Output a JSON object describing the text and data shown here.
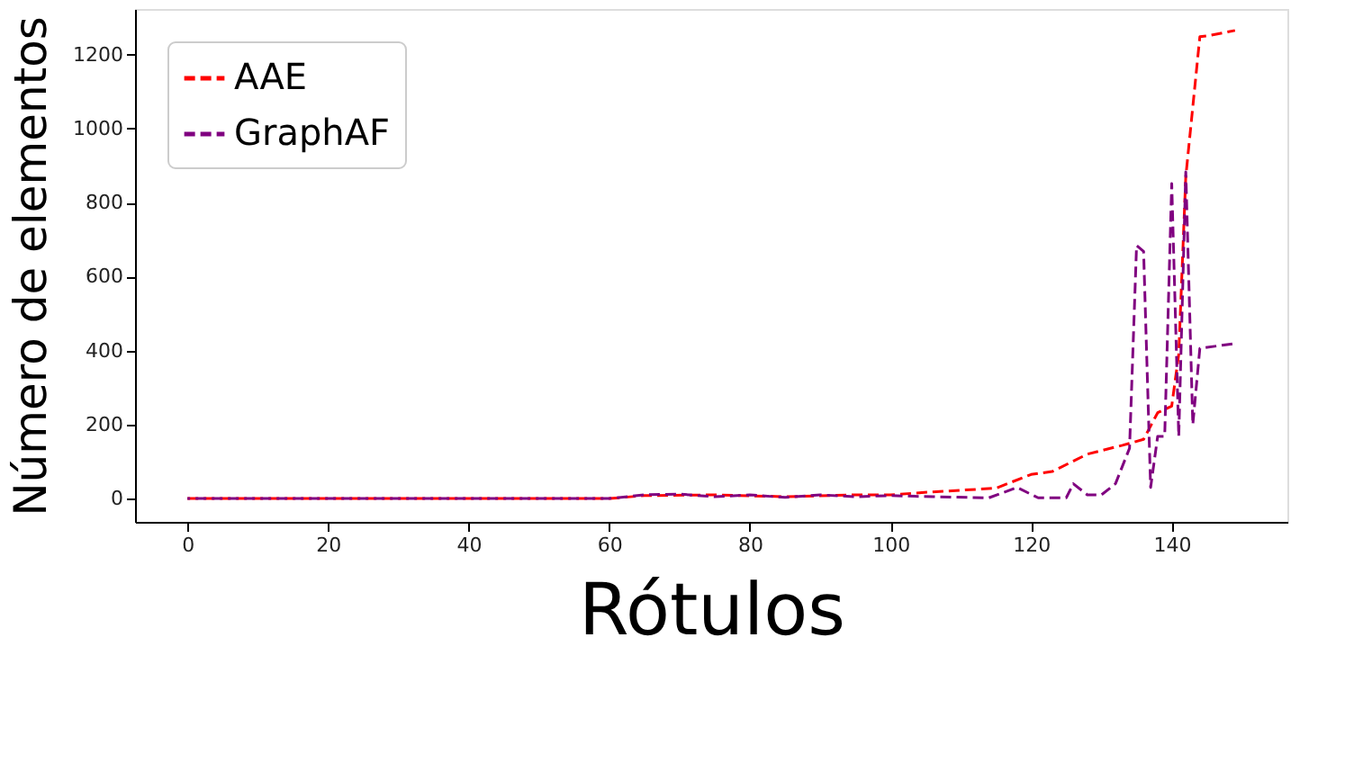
{
  "chart_data": {
    "type": "line",
    "xlabel": "Rótulos",
    "ylabel": "Número de elementos",
    "xlim": [
      -7.45,
      156.45
    ],
    "ylim": [
      -63,
      1323
    ],
    "xticks": [
      0,
      20,
      40,
      60,
      80,
      100,
      120,
      140
    ],
    "yticks": [
      0,
      200,
      400,
      600,
      800,
      1000,
      1200
    ],
    "grid": false,
    "legend": "top left",
    "line_style": "dashed",
    "marker": "none",
    "series": [
      {
        "name": "AAE",
        "color": "#ff0000",
        "x": [
          0,
          60,
          65,
          75,
          85,
          95,
          100,
          106,
          115,
          120,
          123,
          128,
          133,
          136,
          138,
          140,
          141,
          142,
          144,
          145,
          149
        ],
        "values": [
          0,
          0,
          8,
          10,
          5,
          10,
          10,
          18,
          28,
          65,
          73,
          120,
          144,
          160,
          232,
          250,
          390,
          870,
          1248,
          1250,
          1265
        ]
      },
      {
        "name": "GraphAF",
        "color": "#800080",
        "x": [
          0,
          60,
          65,
          70,
          75,
          80,
          85,
          90,
          95,
          100,
          106,
          114,
          118,
          121,
          125,
          126,
          128,
          130,
          132,
          134,
          135,
          136,
          137,
          138,
          139,
          140,
          141,
          142,
          143,
          144,
          149
        ],
        "values": [
          0,
          0,
          10,
          12,
          5,
          10,
          3,
          10,
          5,
          8,
          5,
          2,
          30,
          2,
          2,
          40,
          10,
          10,
          40,
          136,
          684,
          668,
          30,
          168,
          168,
          851,
          168,
          883,
          200,
          406,
          419
        ]
      }
    ]
  }
}
